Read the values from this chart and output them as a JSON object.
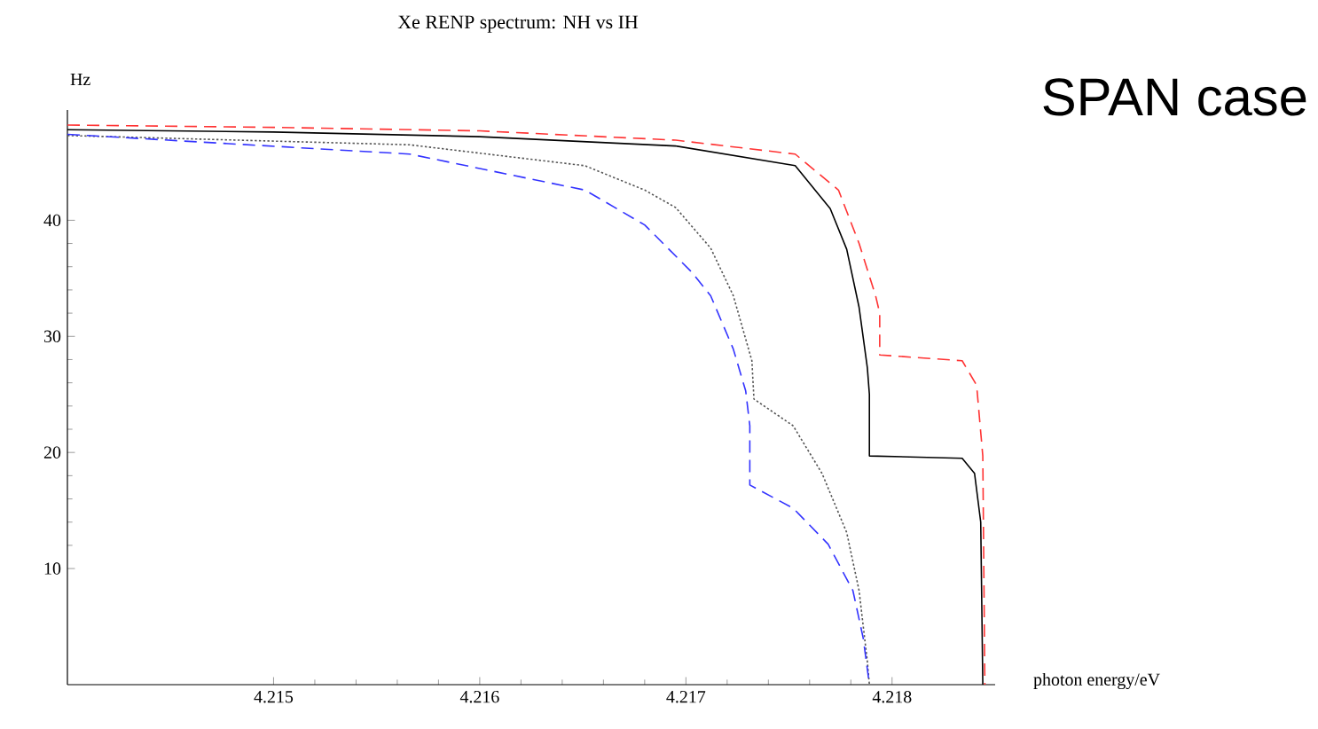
{
  "chart_data": {
    "type": "line",
    "title": "Xe RENP spectrum: NH vs IH",
    "xlabel": "photon energy/eV",
    "ylabel": "Hz",
    "annotations": [
      "SPAN case"
    ],
    "xlim": [
      4.214,
      4.2185
    ],
    "ylim": [
      0,
      49.5
    ],
    "xticks": [
      4.215,
      4.216,
      4.217,
      4.218
    ],
    "yticks": [
      10,
      20,
      30,
      40
    ],
    "grid": false,
    "marker": "none",
    "series": [
      {
        "color": "#ff3333",
        "line_style": "dashed",
        "x": [
          4.214,
          4.215,
          4.216,
          4.21695,
          4.21753,
          4.21774,
          4.21784,
          4.21792,
          4.21794,
          4.21794,
          4.21834,
          4.21841,
          4.21844,
          4.21845
        ],
        "values": [
          48.2,
          48.0,
          47.7,
          46.9,
          45.7,
          42.6,
          38.0,
          33.5,
          32.0,
          28.4,
          27.9,
          25.8,
          19.7,
          0
        ]
      },
      {
        "color": "#000000",
        "line_style": "solid",
        "x": [
          4.214,
          4.215,
          4.216,
          4.21695,
          4.21753,
          4.2177,
          4.21778,
          4.21784,
          4.21788,
          4.21789,
          4.21789,
          4.21834,
          4.2184,
          4.21843,
          4.21844
        ],
        "values": [
          47.8,
          47.6,
          47.2,
          46.4,
          44.7,
          41.0,
          37.5,
          32.5,
          27.3,
          25.0,
          19.7,
          19.5,
          18.2,
          14.0,
          0
        ]
      },
      {
        "color": "#555555",
        "line_style": "dotted",
        "x": [
          4.214,
          4.21566,
          4.21651,
          4.2168,
          4.21695,
          4.21712,
          4.21723,
          4.21732,
          4.21733,
          4.21752,
          4.21766,
          4.21778,
          4.21784,
          4.21788,
          4.21789
        ],
        "values": [
          47.3,
          46.5,
          44.7,
          42.6,
          41.1,
          37.6,
          33.5,
          27.9,
          24.6,
          22.3,
          18.2,
          13.1,
          8.1,
          2.0,
          0
        ]
      },
      {
        "color": "#3333ff",
        "line_style": "dashed",
        "x": [
          4.214,
          4.21566,
          4.21651,
          4.2168,
          4.21703,
          4.21712,
          4.21723,
          4.21729,
          4.21731,
          4.21731,
          4.21752,
          4.21769,
          4.21781,
          4.21786,
          4.21789
        ],
        "values": [
          47.4,
          45.7,
          42.6,
          39.6,
          35.5,
          33.5,
          28.9,
          25.3,
          22.3,
          17.2,
          15.2,
          12.1,
          8.1,
          4.0,
          0
        ]
      }
    ]
  }
}
